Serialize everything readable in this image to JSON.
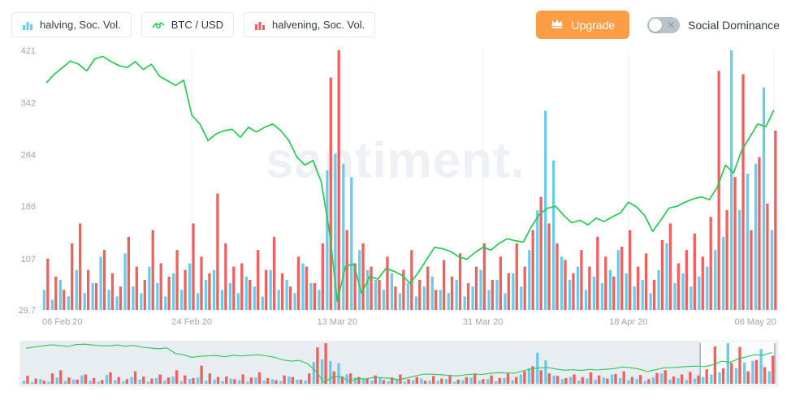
{
  "header": {
    "legend": [
      {
        "label": "halving, Soc. Vol.",
        "color": "#68cdec",
        "icon": "bars-icon"
      },
      {
        "label": "BTC / USD",
        "color": "#26c953",
        "icon": "line-icon"
      },
      {
        "label": "halvening, Soc. Vol.",
        "color": "#f0605d",
        "icon": "bars-icon"
      }
    ],
    "upgrade": {
      "label": "Upgrade",
      "color": "#fb9e45",
      "icon": "crown-icon"
    },
    "social_dominance": {
      "label": "Social Dominance",
      "state": "off"
    }
  },
  "watermark": "santiment.",
  "chart_data": {
    "type": "bar+line",
    "title": "",
    "x_tick_labels": [
      "06 Feb 20",
      "24 Feb 20",
      "13 Mar 20",
      "31 Mar 20",
      "18 Apr 20",
      "06 May 20"
    ],
    "x_tick_positions": [
      0,
      18,
      36,
      54,
      72,
      90
    ],
    "x_range": {
      "start": "06 Feb 20",
      "end": "06 May 20"
    },
    "y_ticks": [
      "421",
      "342",
      "264",
      "186",
      "107",
      "29.7"
    ],
    "ylim": [
      29.7,
      421
    ],
    "num_points": 91,
    "grid": "vertical-only",
    "legend_position": "top-left",
    "series": [
      {
        "name": "halving, Soc. Vol.",
        "type": "bar",
        "color": "#68cdec",
        "values": [
          60,
          45,
          75,
          50,
          90,
          55,
          70,
          110,
          60,
          50,
          115,
          65,
          55,
          95,
          70,
          50,
          85,
          60,
          100,
          55,
          75,
          90,
          60,
          70,
          55,
          80,
          65,
          50,
          90,
          60,
          75,
          55,
          100,
          70,
          60,
          240,
          265,
          250,
          230,
          120,
          90,
          75,
          60,
          85,
          55,
          70,
          50,
          65,
          80,
          60,
          55,
          75,
          50,
          65,
          90,
          60,
          75,
          55,
          85,
          65,
          120,
          180,
          330,
          255,
          110,
          75,
          95,
          60,
          80,
          70,
          90,
          120,
          85,
          65,
          75,
          55,
          90,
          130,
          70,
          85,
          65,
          80,
          95,
          120,
          140,
          421,
          180,
          235,
          250,
          365,
          150
        ]
      },
      {
        "name": "halvening, Soc. Vol.",
        "type": "bar",
        "color": "#f0605d",
        "values": [
          107,
          80,
          60,
          130,
          160,
          90,
          70,
          120,
          85,
          65,
          140,
          95,
          75,
          150,
          100,
          80,
          120,
          90,
          160,
          110,
          85,
          205,
          130,
          95,
          100,
          75,
          120,
          90,
          140,
          85,
          65,
          110,
          95,
          70,
          130,
          380,
          421,
          150,
          100,
          130,
          95,
          75,
          110,
          65,
          90,
          120,
          75,
          95,
          60,
          105,
          80,
          115,
          70,
          95,
          130,
          75,
          110,
          85,
          130,
          95,
          150,
          200,
          160,
          130,
          105,
          85,
          120,
          95,
          140,
          110,
          80,
          125,
          150,
          95,
          115,
          75,
          135,
          160,
          100,
          120,
          145,
          110,
          170,
          390,
          180,
          230,
          385,
          150,
          260,
          190,
          300
        ]
      },
      {
        "name": "BTC / USD",
        "type": "line",
        "color": "#26c953",
        "values": [
          372,
          385,
          395,
          405,
          400,
          390,
          408,
          412,
          404,
          398,
          395,
          404,
          392,
          400,
          382,
          375,
          368,
          376,
          323,
          310,
          285,
          295,
          300,
          302,
          290,
          305,
          298,
          305,
          310,
          300,
          285,
          260,
          248,
          255,
          223,
          150,
          43,
          95,
          99,
          55,
          80,
          76,
          92,
          88,
          82,
          70,
          86,
          105,
          124,
          122,
          118,
          110,
          106,
          116,
          124,
          120,
          130,
          137,
          134,
          132,
          155,
          174,
          183,
          186,
          172,
          161,
          165,
          158,
          168,
          163,
          170,
          176,
          192,
          185,
          172,
          148,
          165,
          183,
          186,
          192,
          197,
          200,
          196,
          215,
          248,
          236,
          270,
          290,
          310,
          306,
          331
        ]
      }
    ],
    "navigator": {
      "selection_start": 0.9,
      "selection_end": 1.0,
      "background": "#e8edf2"
    }
  }
}
